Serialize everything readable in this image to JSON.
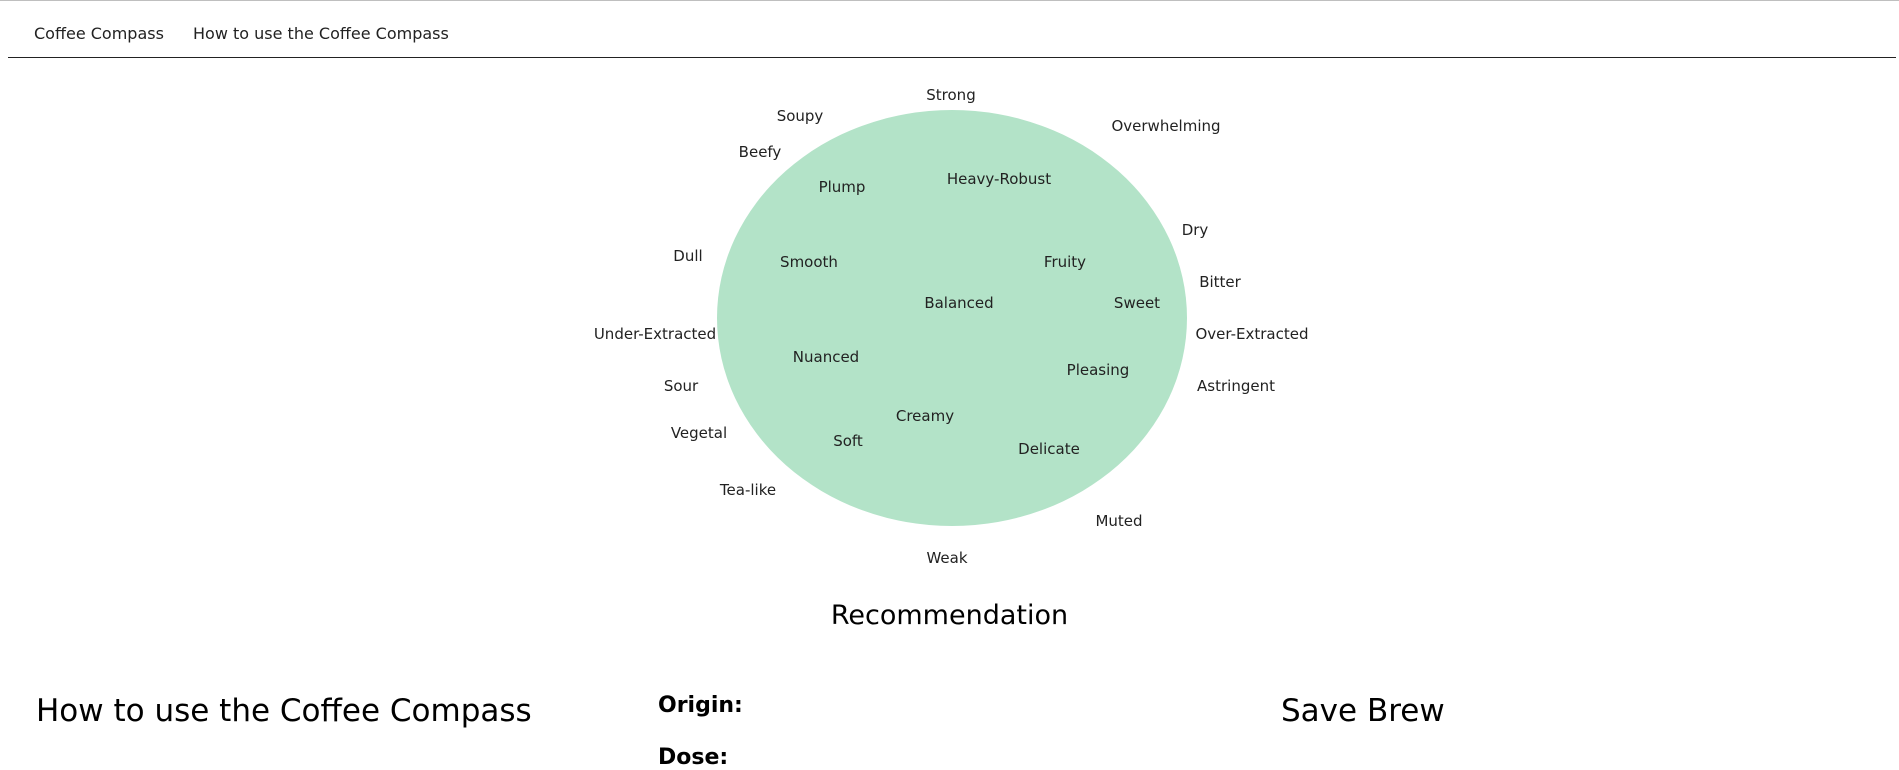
{
  "nav": {
    "items": [
      {
        "label": "Coffee Compass"
      },
      {
        "label": "How to use the Coffee Compass"
      }
    ]
  },
  "compass": {
    "fill_color": "#b3e3c8",
    "inner_labels": [
      "Heavy-Robust",
      "Plump",
      "Smooth",
      "Fruity",
      "Balanced",
      "Sweet",
      "Nuanced",
      "Pleasing",
      "Creamy",
      "Soft",
      "Delicate"
    ],
    "outer_labels": [
      "Strong",
      "Soupy",
      "Overwhelming",
      "Beefy",
      "Dry",
      "Dull",
      "Bitter",
      "Under-Extracted",
      "Over-Extracted",
      "Sour",
      "Astringent",
      "Vegetal",
      "Tea-like",
      "Muted",
      "Weak"
    ]
  },
  "recommendation": {
    "title": "Recommendation",
    "origin_label": "Origin:",
    "dose_label": "Dose:"
  },
  "how_to": {
    "title": "How to use the Coffee Compass"
  },
  "save_brew": {
    "title": "Save Brew"
  }
}
